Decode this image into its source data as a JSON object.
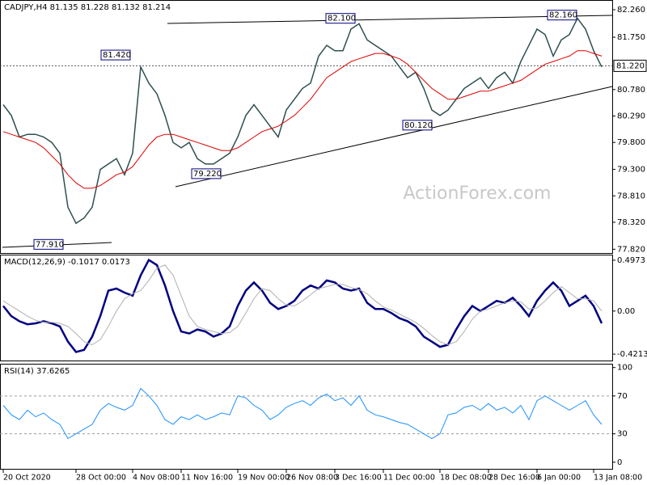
{
  "chart_data": [
    {
      "type": "line",
      "title": "CADJPY,H4  81.135 81.228 81.132 81.214",
      "watermark": "ActionForex.com",
      "ylim": [
        77.75,
        82.44
      ],
      "yticks": [
        {
          "value": 82.26,
          "label": "82.260"
        },
        {
          "value": 81.75,
          "label": "81.750"
        },
        {
          "value": 80.78,
          "label": "80.780"
        },
        {
          "value": 80.29,
          "label": "80.290"
        },
        {
          "value": 79.8,
          "label": "79.800"
        },
        {
          "value": 79.3,
          "label": "79.300"
        },
        {
          "value": 78.81,
          "label": "78.810"
        },
        {
          "value": 78.32,
          "label": "78.320"
        },
        {
          "value": 77.82,
          "label": "77.820"
        }
      ],
      "last_price": {
        "value": 81.22,
        "label": "81.220"
      },
      "series": [
        {
          "name": "Close",
          "color": "#2f4f4f",
          "values": [
            80.5,
            80.3,
            79.9,
            79.95,
            79.95,
            79.9,
            79.8,
            79.6,
            78.6,
            78.3,
            78.4,
            78.6,
            79.3,
            79.4,
            79.5,
            79.2,
            79.6,
            81.2,
            80.9,
            80.7,
            80.3,
            79.8,
            79.7,
            79.8,
            79.5,
            79.4,
            79.4,
            79.5,
            79.6,
            79.9,
            80.3,
            80.5,
            80.3,
            80.1,
            79.9,
            80.4,
            80.6,
            80.8,
            80.9,
            81.4,
            81.6,
            81.5,
            81.5,
            81.9,
            82.0,
            81.7,
            81.6,
            81.5,
            81.4,
            81.2,
            81.0,
            81.1,
            80.8,
            80.4,
            80.3,
            80.4,
            80.6,
            80.8,
            80.9,
            81.0,
            80.8,
            81.0,
            81.1,
            80.9,
            81.3,
            81.6,
            81.9,
            81.8,
            81.4,
            81.7,
            81.8,
            82.1,
            81.9,
            81.5,
            81.2
          ]
        },
        {
          "name": "MA",
          "color": "#e00000",
          "values": [
            80.0,
            79.95,
            79.9,
            79.85,
            79.8,
            79.7,
            79.55,
            79.4,
            79.2,
            79.05,
            78.95,
            78.95,
            79.0,
            79.1,
            79.2,
            79.25,
            79.35,
            79.55,
            79.75,
            79.9,
            79.95,
            79.95,
            79.9,
            79.85,
            79.8,
            79.75,
            79.7,
            79.65,
            79.65,
            79.7,
            79.8,
            79.9,
            80.0,
            80.05,
            80.1,
            80.2,
            80.3,
            80.45,
            80.6,
            80.8,
            81.0,
            81.1,
            81.2,
            81.3,
            81.35,
            81.4,
            81.45,
            81.45,
            81.4,
            81.35,
            81.25,
            81.1,
            80.95,
            80.8,
            80.7,
            80.6,
            80.6,
            80.65,
            80.7,
            80.75,
            80.75,
            80.8,
            80.85,
            80.9,
            80.95,
            81.05,
            81.15,
            81.25,
            81.3,
            81.35,
            81.4,
            81.5,
            81.5,
            81.45,
            81.4
          ]
        }
      ],
      "annotations": [
        {
          "label": "82.100",
          "value": 82.1
        },
        {
          "label": "82.160",
          "value": 82.16
        },
        {
          "label": "81.420",
          "value": 81.42
        },
        {
          "label": "79.220",
          "value": 79.22
        },
        {
          "label": "77.910",
          "value": 77.91
        },
        {
          "label": "80.120",
          "value": 80.12
        }
      ]
    },
    {
      "type": "line",
      "title": "MACD(12,26,9) -0.1017 0.0173",
      "ylim": [
        -0.484,
        0.552
      ],
      "yticks": [
        0.4973,
        {
          "value": 0,
          "label": "0.00"
        },
        -0.4213
      ],
      "series": [
        {
          "name": "MACD",
          "color": "#000080",
          "values": [
            0.05,
            -0.05,
            -0.1,
            -0.13,
            -0.12,
            -0.1,
            -0.12,
            -0.15,
            -0.3,
            -0.4,
            -0.38,
            -0.25,
            -0.05,
            0.2,
            0.22,
            0.18,
            0.15,
            0.35,
            0.5,
            0.45,
            0.25,
            0.0,
            -0.2,
            -0.22,
            -0.18,
            -0.2,
            -0.25,
            -0.22,
            -0.15,
            0.05,
            0.2,
            0.28,
            0.2,
            0.08,
            0.02,
            0.05,
            0.1,
            0.2,
            0.25,
            0.22,
            0.3,
            0.28,
            0.22,
            0.2,
            0.22,
            0.08,
            0.02,
            0.02,
            -0.02,
            -0.07,
            -0.1,
            -0.15,
            -0.25,
            -0.3,
            -0.35,
            -0.33,
            -0.18,
            -0.05,
            0.05,
            0.0,
            0.05,
            0.1,
            0.08,
            0.13,
            0.05,
            -0.05,
            0.1,
            0.2,
            0.28,
            0.2,
            0.05,
            0.1,
            0.15,
            0.05,
            -0.12
          ]
        },
        {
          "name": "Signal",
          "color": "#b0b0b0",
          "values": [
            0.1,
            0.05,
            0.0,
            -0.05,
            -0.09,
            -0.11,
            -0.11,
            -0.12,
            -0.15,
            -0.22,
            -0.3,
            -0.33,
            -0.28,
            -0.15,
            0.0,
            0.12,
            0.17,
            0.2,
            0.3,
            0.42,
            0.45,
            0.35,
            0.15,
            -0.05,
            -0.15,
            -0.18,
            -0.2,
            -0.22,
            -0.21,
            -0.15,
            -0.02,
            0.12,
            0.22,
            0.2,
            0.12,
            0.06,
            0.05,
            0.1,
            0.16,
            0.22,
            0.24,
            0.26,
            0.26,
            0.23,
            0.21,
            0.17,
            0.1,
            0.04,
            0.01,
            -0.03,
            -0.07,
            -0.11,
            -0.17,
            -0.24,
            -0.3,
            -0.33,
            -0.3,
            -0.2,
            -0.08,
            0.0,
            0.02,
            0.05,
            0.08,
            0.1,
            0.09,
            0.02,
            0.03,
            0.1,
            0.18,
            0.24,
            0.18,
            0.12,
            0.12,
            0.1,
            0.0
          ]
        }
      ]
    },
    {
      "type": "line",
      "title": "RSI(14) 37.6265",
      "ylim": [
        -7,
        104
      ],
      "yticks": [
        100,
        70,
        30,
        0
      ],
      "levels": [
        70,
        30
      ],
      "categories": [
        "20 Oct 2020",
        null,
        null,
        null,
        null,
        null,
        null,
        null,
        null,
        "28 Oct 00:00",
        null,
        null,
        null,
        null,
        null,
        null,
        "4 Nov 08:00",
        null,
        null,
        null,
        null,
        null,
        "11 Nov 16:00",
        null,
        null,
        null,
        null,
        null,
        null,
        "19 Nov 00:00",
        null,
        null,
        null,
        null,
        null,
        "26 Nov 08:00",
        null,
        null,
        null,
        null,
        null,
        "3 Dec 16:00",
        null,
        null,
        null,
        null,
        null,
        "11 Dec 00:00",
        null,
        null,
        null,
        null,
        null,
        null,
        "18 Dec 08:00",
        null,
        null,
        null,
        null,
        null,
        "28 Dec 16:00",
        null,
        null,
        null,
        null,
        null,
        "6 Jan 00:00",
        null,
        null,
        null,
        null,
        null,
        null,
        "13 Jan 08:00",
        null
      ],
      "series": [
        {
          "name": "RSI",
          "color": "#1e90ff",
          "values": [
            60,
            50,
            45,
            55,
            48,
            52,
            45,
            40,
            25,
            30,
            35,
            40,
            55,
            62,
            58,
            55,
            60,
            78,
            70,
            60,
            45,
            40,
            48,
            45,
            50,
            45,
            48,
            52,
            50,
            70,
            68,
            60,
            55,
            45,
            50,
            58,
            62,
            65,
            60,
            68,
            72,
            65,
            68,
            60,
            70,
            55,
            50,
            48,
            45,
            42,
            40,
            35,
            30,
            25,
            30,
            50,
            52,
            58,
            60,
            55,
            62,
            55,
            58,
            52,
            60,
            45,
            65,
            70,
            65,
            60,
            55,
            60,
            65,
            50,
            40
          ]
        }
      ]
    }
  ]
}
